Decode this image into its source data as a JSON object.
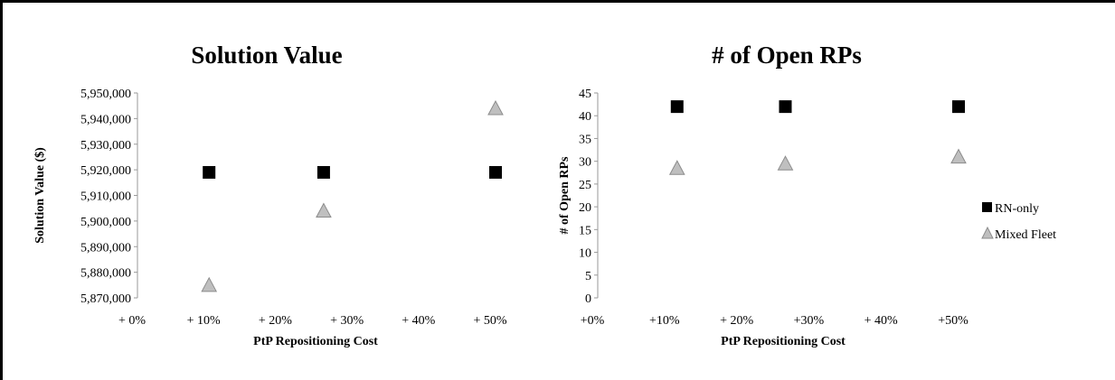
{
  "chart_data": [
    {
      "type": "scatter",
      "title": "Solution Value",
      "xlabel": "PtP Repositioning Cost",
      "ylabel": "Solution Value ($)",
      "x_tick_labels": [
        "+ 0%",
        "+ 10%",
        "+ 20%",
        "+ 30%",
        "+ 40%",
        "+ 50%"
      ],
      "y_tick_labels": [
        "5,950,000",
        "5,940,000",
        "5,930,000",
        "5,920,000",
        "5,910,000",
        "5,900,000",
        "5,890,000",
        "5,880,000",
        "5,870,000"
      ],
      "xlim": [
        0,
        50
      ],
      "ylim": [
        5870000,
        5950000
      ],
      "grid": false,
      "series": [
        {
          "name": "RN-only",
          "marker": "square",
          "color": "#000000",
          "x": [
            10,
            26,
            50
          ],
          "y": [
            5919000,
            5919000,
            5919000
          ]
        },
        {
          "name": "Mixed Fleet",
          "marker": "triangle",
          "color": "#bfbfbf",
          "x": [
            10,
            26,
            50
          ],
          "y": [
            5875000,
            5904000,
            5944000
          ]
        }
      ]
    },
    {
      "type": "scatter",
      "title": "# of Open RPs",
      "xlabel": "PtP Repositioning Cost",
      "ylabel": "# of Open RPs",
      "x_tick_labels": [
        "+0%",
        "+10%",
        "+ 20%",
        "+30%",
        "+ 40%",
        "+50%"
      ],
      "y_tick_labels": [
        "45",
        "40",
        "35",
        "30",
        "25",
        "20",
        "15",
        "10",
        "5",
        "0"
      ],
      "xlim": [
        0,
        50
      ],
      "ylim": [
        0,
        45
      ],
      "grid": false,
      "series": [
        {
          "name": "RN-only",
          "marker": "square",
          "color": "#000000",
          "x": [
            11,
            26,
            50
          ],
          "y": [
            42,
            42,
            42
          ]
        },
        {
          "name": "Mixed Fleet",
          "marker": "triangle",
          "color": "#bfbfbf",
          "x": [
            11,
            26,
            50
          ],
          "y": [
            28.5,
            29.5,
            31
          ]
        }
      ]
    }
  ],
  "legend": {
    "placement": "right",
    "items": [
      {
        "label": "RN-only",
        "marker": "square",
        "color": "#000000"
      },
      {
        "label": "Mixed Fleet",
        "marker": "triangle",
        "color": "#bfbfbf"
      }
    ]
  }
}
